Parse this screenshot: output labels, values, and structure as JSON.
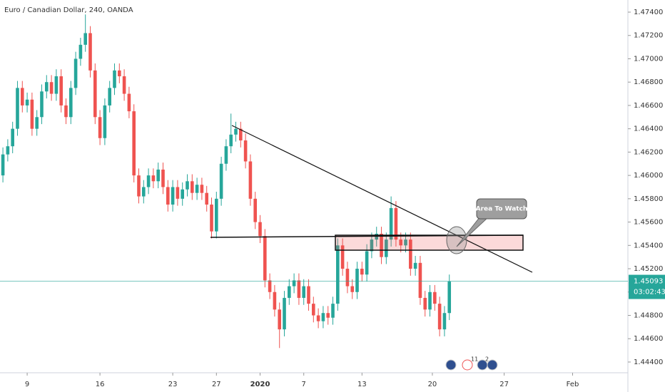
{
  "chart_data": {
    "type": "candlestick",
    "title": "Euro / Canadian Dollar, 240, OANDA",
    "up_color": "#26a69a",
    "down_color": "#ef5350",
    "grid": false,
    "ylim": [
      1.44308,
      1.47504
    ],
    "xlim": [
      -0.6,
      128.8
    ],
    "yticks": [
      {
        "value": 1.444,
        "label": "1.44400"
      },
      {
        "value": 1.446,
        "label": "1.44600"
      },
      {
        "value": 1.448,
        "label": "1.44800"
      },
      {
        "value": 1.45,
        "label": "1.45000"
      },
      {
        "value": 1.452,
        "label": "1.45200"
      },
      {
        "value": 1.454,
        "label": "1.45400"
      },
      {
        "value": 1.456,
        "label": "1.45600"
      },
      {
        "value": 1.458,
        "label": "1.45800"
      },
      {
        "value": 1.46,
        "label": "1.46000"
      },
      {
        "value": 1.462,
        "label": "1.46200"
      },
      {
        "value": 1.464,
        "label": "1.46400"
      },
      {
        "value": 1.466,
        "label": "1.46600"
      },
      {
        "value": 1.468,
        "label": "1.46800"
      },
      {
        "value": 1.47,
        "label": "1.47000"
      },
      {
        "value": 1.472,
        "label": "1.47200"
      },
      {
        "value": 1.474,
        "label": "1.47400"
      }
    ],
    "xticks": [
      {
        "value": 5,
        "label": "9"
      },
      {
        "value": 20,
        "label": "16"
      },
      {
        "value": 35,
        "label": "23"
      },
      {
        "value": 44,
        "label": "27"
      },
      {
        "value": 53,
        "label": "2020"
      },
      {
        "value": 62,
        "label": "7"
      },
      {
        "value": 74,
        "label": "13"
      },
      {
        "value": 88.5,
        "label": "20"
      },
      {
        "value": 103.3,
        "label": "27"
      },
      {
        "value": 117.4,
        "label": "Feb"
      }
    ],
    "last_price": {
      "value": 1.45093,
      "label": "1.45093"
    },
    "countdown": "03:02:43",
    "annotation": "Area To Watch",
    "event_badges": [
      "11",
      "2"
    ],
    "ohlc": [
      [
        1.46,
        1.4624,
        1.4594,
        1.4618
      ],
      [
        1.4618,
        1.4631,
        1.4612,
        1.4625
      ],
      [
        1.4625,
        1.4646,
        1.4619,
        1.464
      ],
      [
        1.464,
        1.4681,
        1.4634,
        1.4675
      ],
      [
        1.4675,
        1.4681,
        1.4654,
        1.466
      ],
      [
        1.466,
        1.4671,
        1.4654,
        1.4665
      ],
      [
        1.4665,
        1.4671,
        1.4634,
        1.464
      ],
      [
        1.464,
        1.4656,
        1.4634,
        1.465
      ],
      [
        1.465,
        1.4678,
        1.4644,
        1.4672
      ],
      [
        1.4672,
        1.4686,
        1.4666,
        1.468
      ],
      [
        1.468,
        1.4686,
        1.4664,
        1.467
      ],
      [
        1.467,
        1.4691,
        1.4664,
        1.4685
      ],
      [
        1.4685,
        1.4691,
        1.4654,
        1.466
      ],
      [
        1.466,
        1.4666,
        1.4644,
        1.465
      ],
      [
        1.465,
        1.4681,
        1.4644,
        1.4675
      ],
      [
        1.4675,
        1.4706,
        1.4669,
        1.47
      ],
      [
        1.47,
        1.4718,
        1.4694,
        1.4712
      ],
      [
        1.4712,
        1.4738,
        1.4706,
        1.4722
      ],
      [
        1.4722,
        1.4728,
        1.4684,
        1.469
      ],
      [
        1.469,
        1.4696,
        1.4644,
        1.465
      ],
      [
        1.465,
        1.4656,
        1.4626,
        1.4632
      ],
      [
        1.4632,
        1.4666,
        1.4626,
        1.466
      ],
      [
        1.466,
        1.4681,
        1.4654,
        1.4675
      ],
      [
        1.4675,
        1.4696,
        1.4669,
        1.469
      ],
      [
        1.469,
        1.4696,
        1.4679,
        1.4685
      ],
      [
        1.4685,
        1.4691,
        1.4664,
        1.467
      ],
      [
        1.467,
        1.4676,
        1.4649,
        1.4655
      ],
      [
        1.4655,
        1.4661,
        1.4594,
        1.46
      ],
      [
        1.46,
        1.4606,
        1.4576,
        1.4582
      ],
      [
        1.4582,
        1.4596,
        1.4576,
        1.459
      ],
      [
        1.459,
        1.4606,
        1.4584,
        1.46
      ],
      [
        1.46,
        1.4606,
        1.4589,
        1.4595
      ],
      [
        1.4595,
        1.4611,
        1.4589,
        1.4605
      ],
      [
        1.4605,
        1.4611,
        1.4584,
        1.459
      ],
      [
        1.459,
        1.4596,
        1.4569,
        1.4575
      ],
      [
        1.4575,
        1.4596,
        1.4569,
        1.459
      ],
      [
        1.459,
        1.4596,
        1.4574,
        1.458
      ],
      [
        1.458,
        1.4594,
        1.4574,
        1.4588
      ],
      [
        1.4588,
        1.4601,
        1.4582,
        1.4595
      ],
      [
        1.4595,
        1.4601,
        1.4579,
        1.4585
      ],
      [
        1.4585,
        1.4598,
        1.4579,
        1.4592
      ],
      [
        1.4592,
        1.4598,
        1.4579,
        1.4585
      ],
      [
        1.4585,
        1.4591,
        1.4569,
        1.4575
      ],
      [
        1.4575,
        1.4581,
        1.4546,
        1.4552
      ],
      [
        1.4552,
        1.4586,
        1.4546,
        1.458
      ],
      [
        1.458,
        1.4616,
        1.4574,
        1.461
      ],
      [
        1.461,
        1.4631,
        1.4604,
        1.4625
      ],
      [
        1.4625,
        1.4653,
        1.4619,
        1.4635
      ],
      [
        1.4635,
        1.4646,
        1.4629,
        1.464
      ],
      [
        1.464,
        1.4646,
        1.4624,
        1.463
      ],
      [
        1.463,
        1.4636,
        1.4606,
        1.4612
      ],
      [
        1.4612,
        1.4618,
        1.4574,
        1.458
      ],
      [
        1.458,
        1.4586,
        1.4554,
        1.456
      ],
      [
        1.456,
        1.4566,
        1.4542,
        1.4548
      ],
      [
        1.4548,
        1.4554,
        1.4504,
        1.451
      ],
      [
        1.451,
        1.4516,
        1.4494,
        1.45
      ],
      [
        1.45,
        1.4506,
        1.4479,
        1.4485
      ],
      [
        1.4485,
        1.4491,
        1.4452,
        1.4468
      ],
      [
        1.4468,
        1.4501,
        1.4462,
        1.4495
      ],
      [
        1.4495,
        1.4511,
        1.4489,
        1.4505
      ],
      [
        1.4505,
        1.4516,
        1.4499,
        1.451
      ],
      [
        1.451,
        1.4516,
        1.4489,
        1.4495
      ],
      [
        1.4495,
        1.4511,
        1.4489,
        1.4505
      ],
      [
        1.4505,
        1.4511,
        1.4484,
        1.449
      ],
      [
        1.449,
        1.4496,
        1.4474,
        1.448
      ],
      [
        1.448,
        1.4486,
        1.4469,
        1.4475
      ],
      [
        1.4475,
        1.4488,
        1.4469,
        1.4482
      ],
      [
        1.4482,
        1.4488,
        1.4472,
        1.4478
      ],
      [
        1.4478,
        1.4496,
        1.4472,
        1.449
      ],
      [
        1.449,
        1.4546,
        1.4484,
        1.454
      ],
      [
        1.454,
        1.4546,
        1.4514,
        1.452
      ],
      [
        1.452,
        1.4526,
        1.4499,
        1.4505
      ],
      [
        1.4505,
        1.4511,
        1.4494,
        1.45
      ],
      [
        1.45,
        1.4526,
        1.4494,
        1.452
      ],
      [
        1.452,
        1.4526,
        1.4509,
        1.4515
      ],
      [
        1.4515,
        1.4541,
        1.4509,
        1.4535
      ],
      [
        1.4535,
        1.4551,
        1.4529,
        1.4545
      ],
      [
        1.4545,
        1.4556,
        1.4539,
        1.455
      ],
      [
        1.455,
        1.4556,
        1.4524,
        1.453
      ],
      [
        1.453,
        1.4551,
        1.4524,
        1.4545
      ],
      [
        1.4545,
        1.4582,
        1.4539,
        1.4572
      ],
      [
        1.4572,
        1.4578,
        1.4539,
        1.4545
      ],
      [
        1.4545,
        1.4551,
        1.4534,
        1.454
      ],
      [
        1.454,
        1.4551,
        1.4534,
        1.4545
      ],
      [
        1.4545,
        1.4551,
        1.4514,
        1.452
      ],
      [
        1.452,
        1.4531,
        1.4514,
        1.4525
      ],
      [
        1.4525,
        1.4531,
        1.4489,
        1.4495
      ],
      [
        1.4495,
        1.4501,
        1.4479,
        1.4485
      ],
      [
        1.4485,
        1.4506,
        1.4479,
        1.45
      ],
      [
        1.45,
        1.4506,
        1.4484,
        1.449
      ],
      [
        1.449,
        1.4496,
        1.4462,
        1.4468
      ],
      [
        1.4468,
        1.4488,
        1.4462,
        1.4482
      ],
      [
        1.4482,
        1.4515,
        1.4476,
        1.4509
      ]
    ]
  }
}
